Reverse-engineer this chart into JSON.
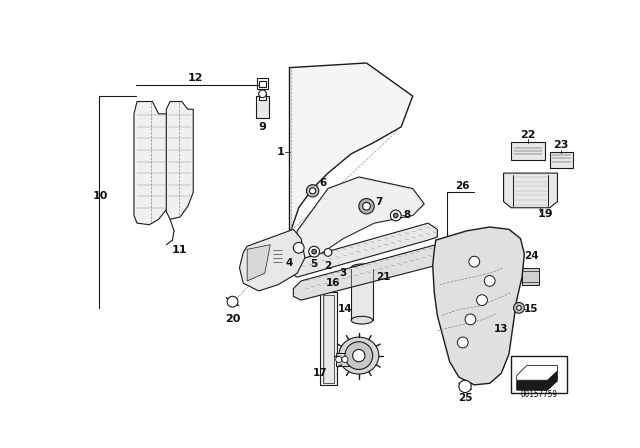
{
  "bg_color": "#ffffff",
  "line_color": "#1a1a1a",
  "catalog_num": "00157759",
  "figsize": [
    6.4,
    4.48
  ],
  "dpi": 100
}
